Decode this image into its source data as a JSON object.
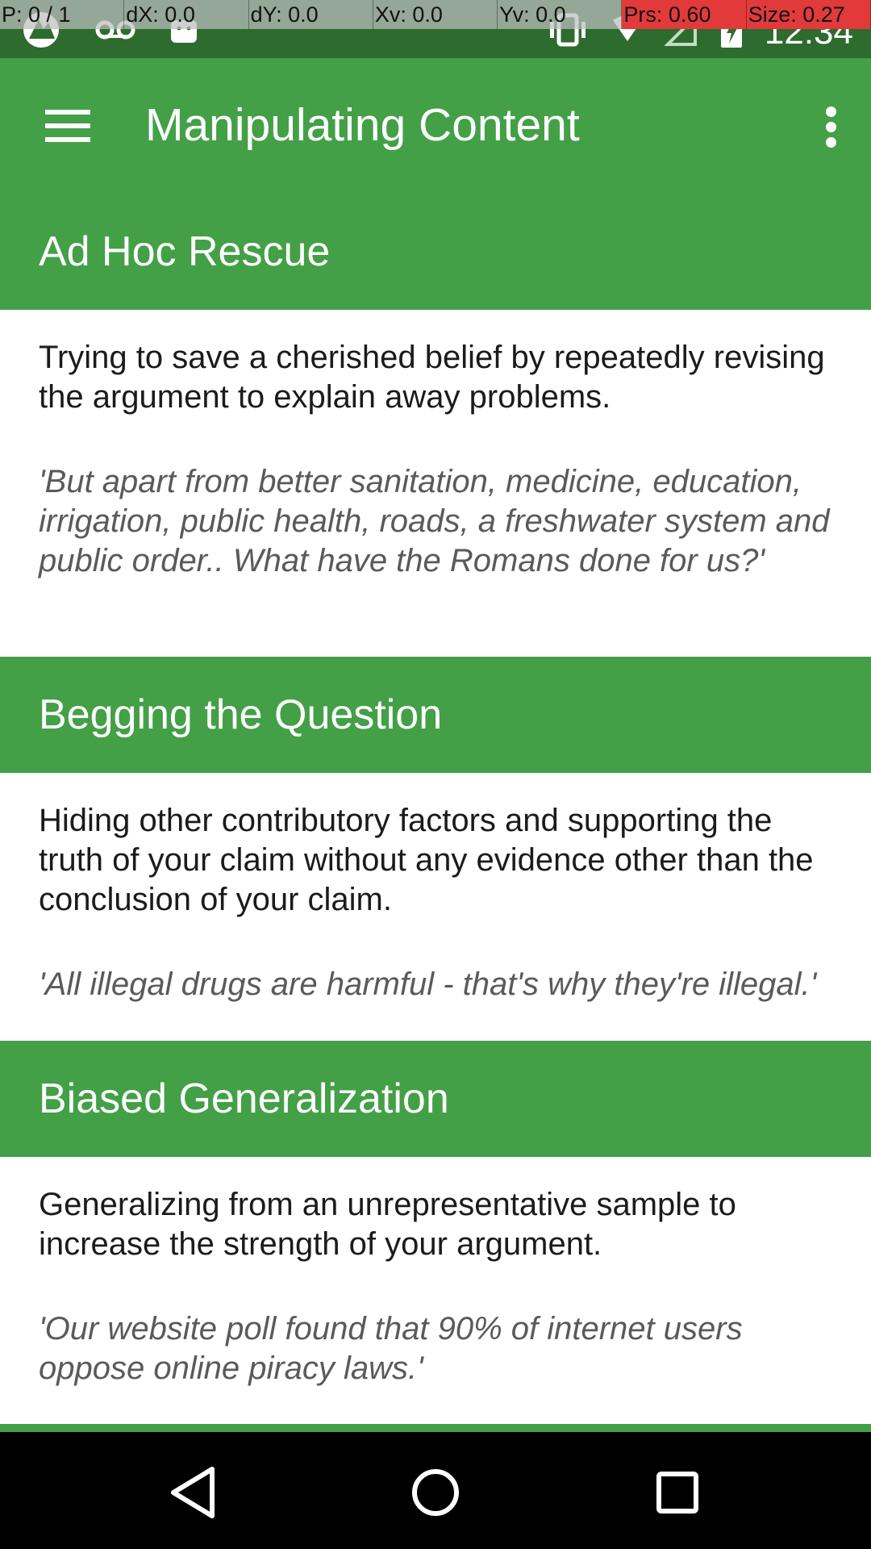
{
  "status_bar": {
    "debug_overlay": [
      "P: 0 / 1",
      "dX: 0.0",
      "dY: 0.0",
      "Xv: 0.0",
      "Yv: 0.0",
      "Prs: 0.60",
      "Size: 0.27"
    ],
    "time": "12:34",
    "icons": [
      "app-notification-icon",
      "voicemail-icon",
      "android-icon",
      "vibrate-icon",
      "wifi-icon",
      "signal-icon",
      "battery-charging-icon"
    ]
  },
  "app_bar": {
    "title": "Manipulating Content",
    "menu_icon": "hamburger-menu-icon",
    "overflow_icon": "more-vert-icon"
  },
  "fallacies": [
    {
      "name": "Ad Hoc Rescue",
      "description": "Trying to save a cherished belief by repeatedly revising the argument to explain away problems.",
      "example": "'But apart from better sanitation, medicine, education, irrigation, public health, roads, a freshwater system and public order.. What have the Romans done for us?'"
    },
    {
      "name": "Begging the Question",
      "description": "Hiding other contributory factors and supporting the truth of your claim without any evidence other than the conclusion of your claim.",
      "example": "'All illegal drugs are harmful - that's why they're illegal.'"
    },
    {
      "name": "Biased Generalization",
      "description": "Generalizing from an unrepresentative sample to increase the strength of your argument.",
      "example": "'Our website poll found that 90% of internet users oppose online piracy laws.'"
    }
  ],
  "nav_bar": {
    "back_icon": "back-triangle-icon",
    "home_icon": "home-circle-icon",
    "recents_icon": "recents-square-icon"
  },
  "colors": {
    "primary": "#43a047",
    "status_bar": "#2d6b2f",
    "example_text": "#5a5a5a",
    "body_text": "#1b1b1b"
  }
}
